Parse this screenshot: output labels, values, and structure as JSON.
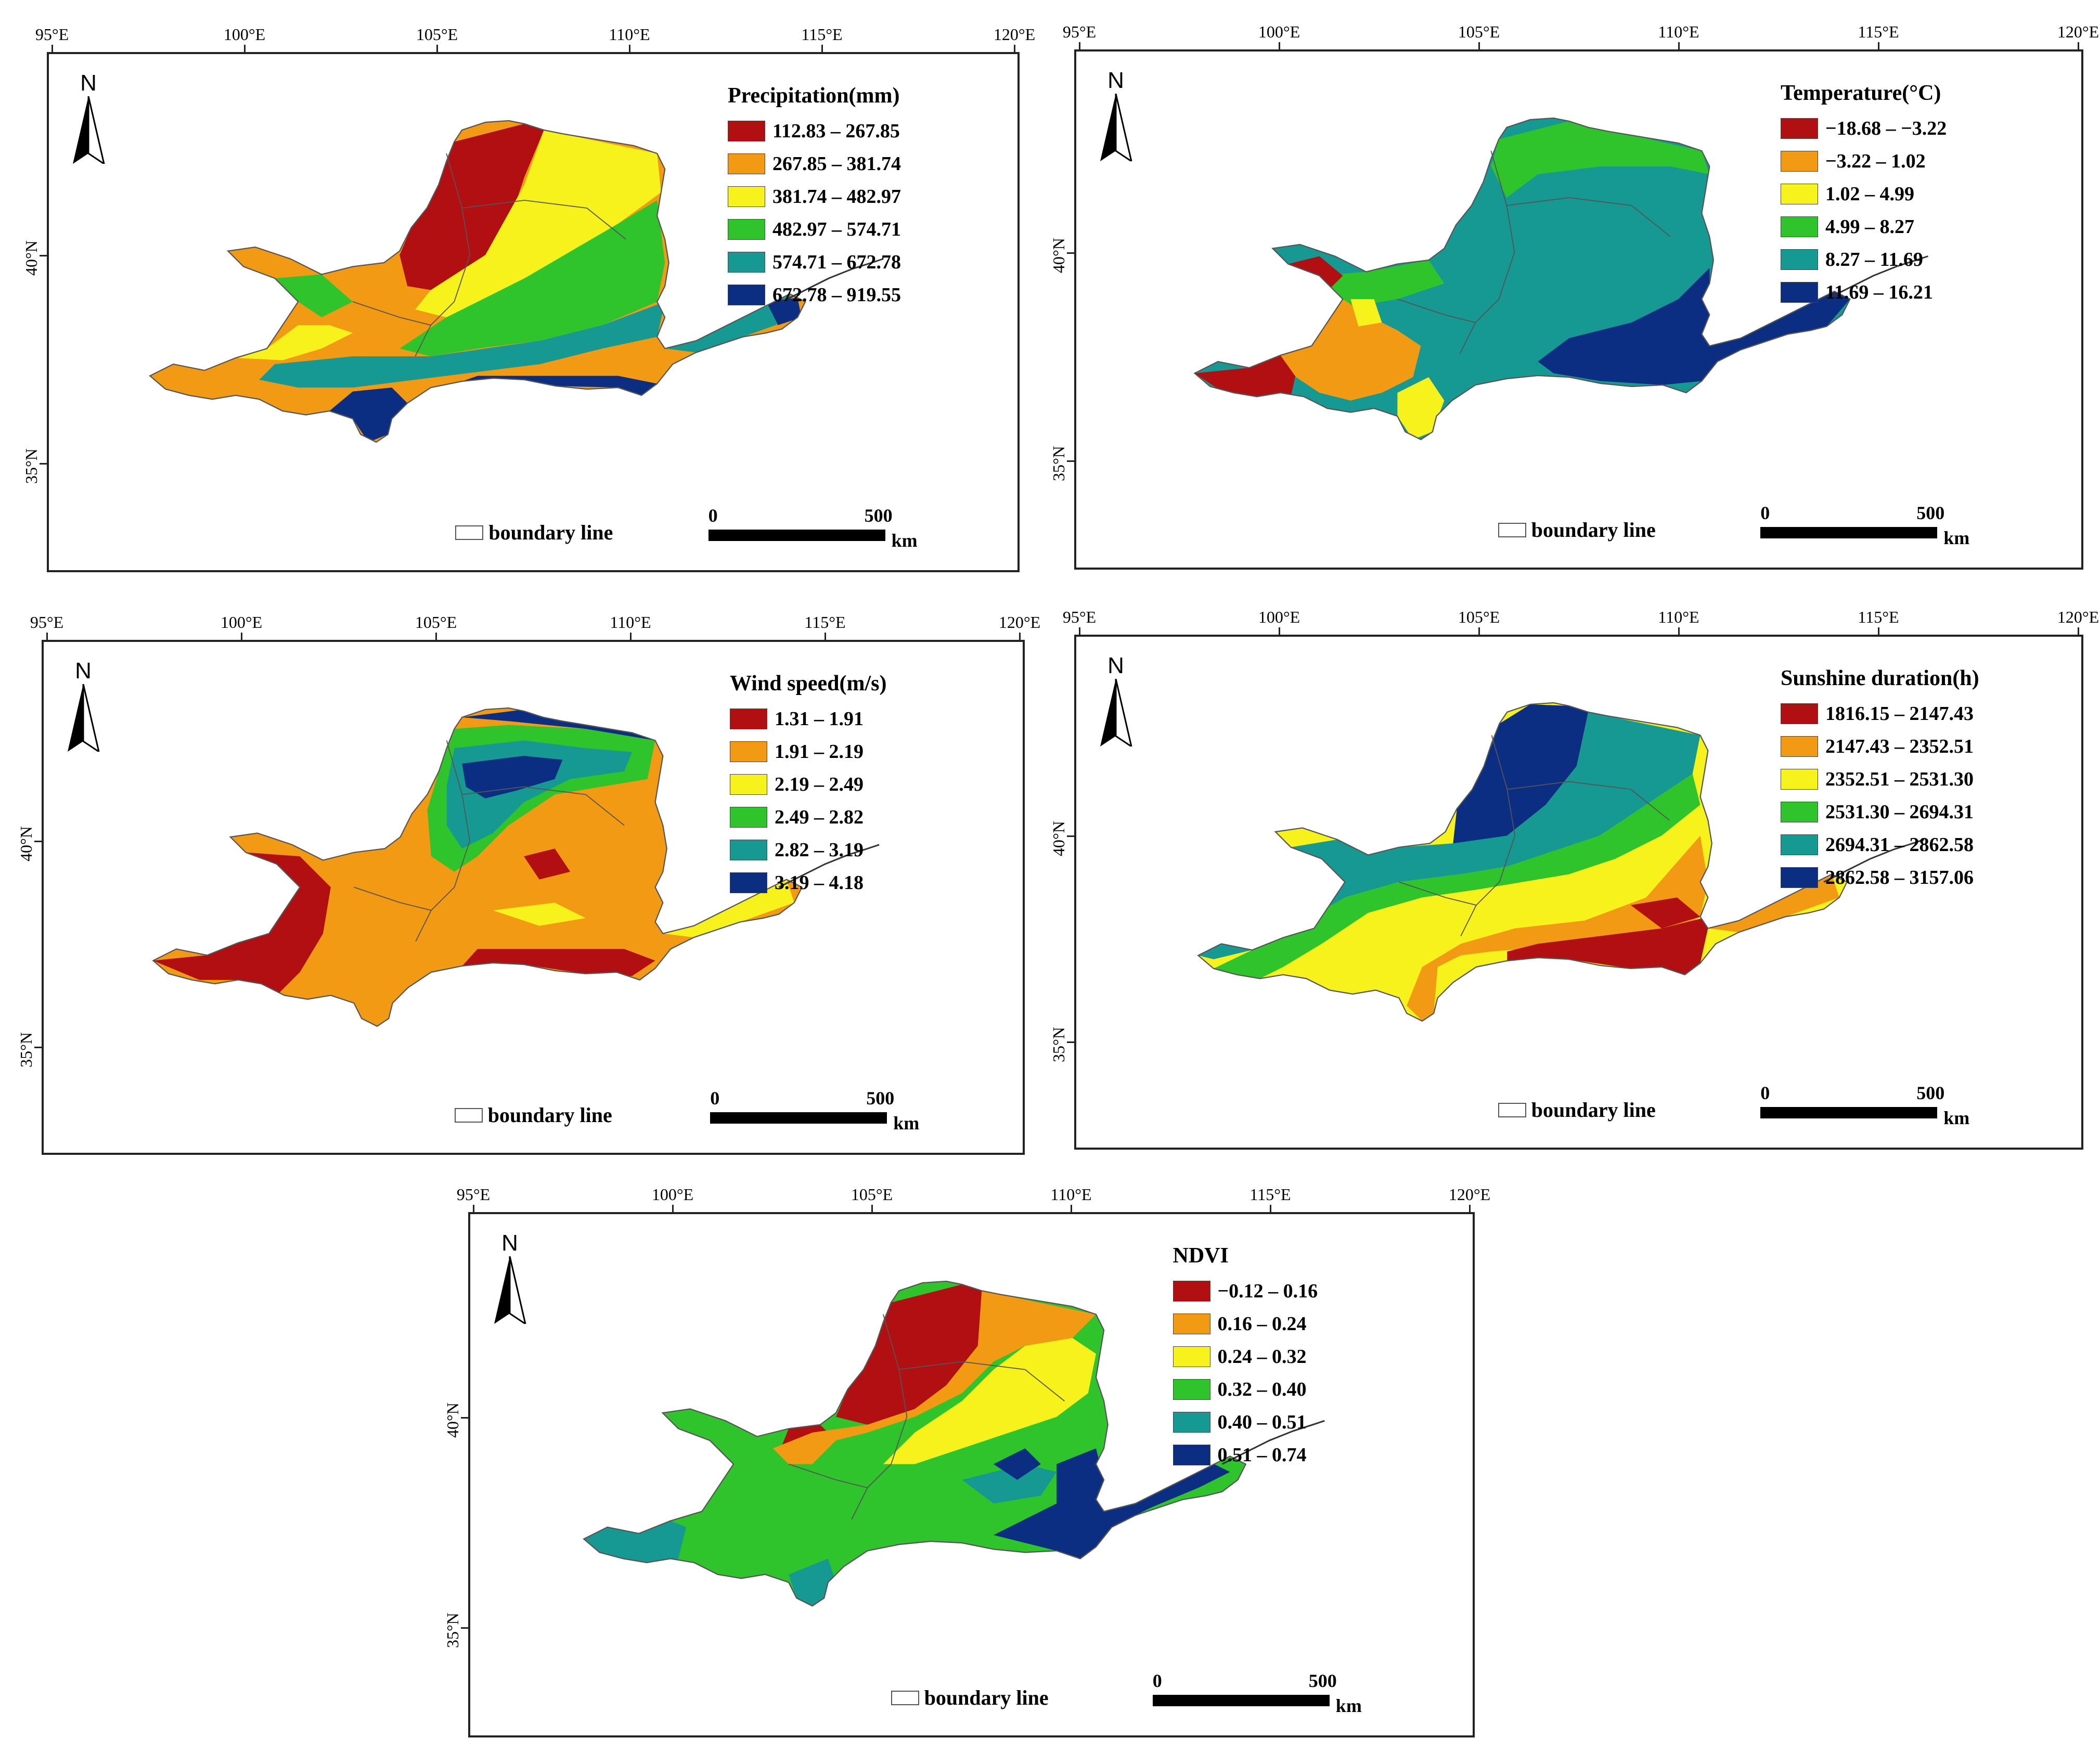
{
  "lon_labels": [
    "95°E",
    "100°E",
    "105°E",
    "110°E",
    "115°E",
    "120°E"
  ],
  "lat_labels": [
    "35°N",
    "40°N"
  ],
  "north_label": "N",
  "boundary_label": "boundary line",
  "scale": {
    "start": "0",
    "end": "500",
    "unit": "km"
  },
  "colors": [
    "#b10f12",
    "#f39a14",
    "#f7f21c",
    "#2fc32c",
    "#169893",
    "#0c2e82"
  ],
  "panels": [
    {
      "title": "Precipitation(mm)",
      "classes": [
        "112.83 – 267.85",
        "267.85 – 381.74",
        "381.74 – 482.97",
        "482.97 – 574.71",
        "574.71 – 672.78",
        "672.78 – 919.55"
      ]
    },
    {
      "title": "Temperature(°C)",
      "classes": [
        "−18.68 – −3.22",
        "−3.22 – 1.02",
        "1.02 – 4.99",
        "4.99 – 8.27",
        "8.27 – 11.69",
        "11.69 – 16.21"
      ]
    },
    {
      "title": "Wind speed(m/s)",
      "classes": [
        "1.31 – 1.91",
        "1.91 – 2.19",
        "2.19 – 2.49",
        "2.49 – 2.82",
        "2.82 – 3.19",
        "3.19 – 4.18"
      ]
    },
    {
      "title": "Sunshine duration(h)",
      "classes": [
        "1816.15 – 2147.43",
        "2147.43 – 2352.51",
        "2352.51 – 2531.30",
        "2531.30 – 2694.31",
        "2694.31 – 2862.58",
        "2862.58 – 3157.06"
      ]
    },
    {
      "title": "NDVI",
      "classes": [
        "−0.12 – 0.16",
        "0.16 – 0.24",
        "0.24 – 0.32",
        "0.32 – 0.40",
        "0.40 – 0.51",
        "0.51 – 0.74"
      ]
    }
  ]
}
